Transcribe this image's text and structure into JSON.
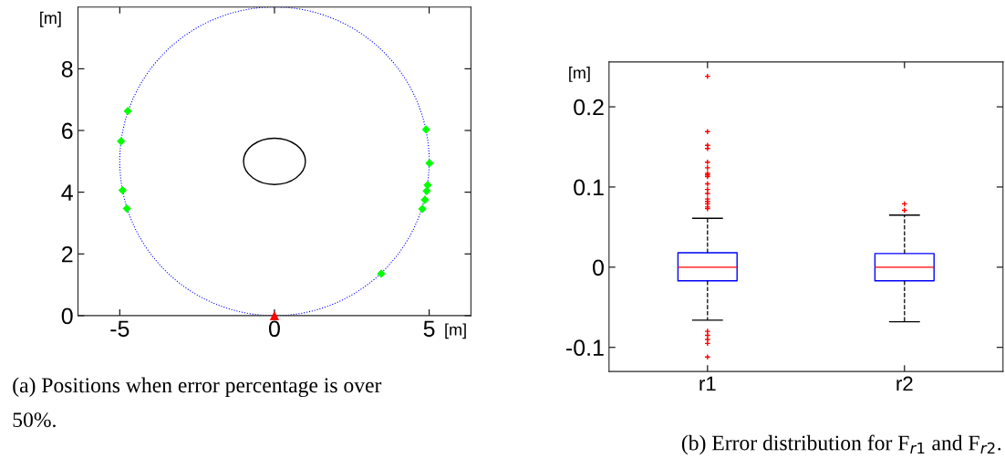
{
  "chart_data": [
    {
      "type": "scatter",
      "xlabel": "[m]",
      "ylabel": "[m]",
      "xlim": [
        -6.35,
        6.35
      ],
      "ylim": [
        0,
        10
      ],
      "xticks": [
        -5,
        0,
        5
      ],
      "yticks": [
        0,
        2,
        4,
        6,
        8
      ],
      "annotations": [
        "(a) Positions when error percentage is over\n50%."
      ],
      "series": [
        {
          "type": "scatter",
          "color": "#00ff00",
          "marker": "diamond",
          "x": [
            -4.74,
            -4.96,
            -4.91,
            -4.77,
            4.9,
            5.01,
            4.95,
            4.92,
            4.86,
            4.78,
            3.45
          ],
          "values": [
            6.63,
            5.65,
            4.06,
            3.47,
            6.03,
            4.94,
            4.23,
            4.04,
            3.75,
            3.46,
            1.36
          ]
        },
        {
          "type": "scatter",
          "color": "#ff0000",
          "marker": "triangle",
          "x": [
            0
          ],
          "values": [
            0
          ]
        }
      ]
    },
    {
      "type": "box",
      "ylabel": "[m]",
      "categories": [
        "r1",
        "r2"
      ],
      "ylim": [
        -0.13,
        0.256
      ],
      "yticks": [
        -0.1,
        0,
        0.1,
        0.2
      ],
      "annotations": [
        "(b) Error distribution for F$_{r1}$ and F$_{r2}$."
      ],
      "series": [
        {
          "color": "#0000ff",
          "boxes": [
            {
              "low": -0.066,
              "q1": -0.017,
              "median": 0,
              "q3": 0.018,
              "high": 0.061,
              "outliers": [
                0.238,
                0.169,
                0.152,
                0.148,
                0.131,
                0.124,
                0.117,
                0.115,
                0.113,
                0.104,
                0.097,
                0.092,
                0.085,
                0.082,
                0.079,
                0.075,
                0.073,
                -0.08,
                -0.085,
                -0.09,
                -0.095,
                -0.112
              ]
            },
            {
              "low": -0.068,
              "q1": -0.017,
              "median": 0,
              "q3": 0.017,
              "high": 0.065,
              "outliers": [
                0.079,
                0.071
              ]
            }
          ]
        }
      ]
    }
  ]
}
